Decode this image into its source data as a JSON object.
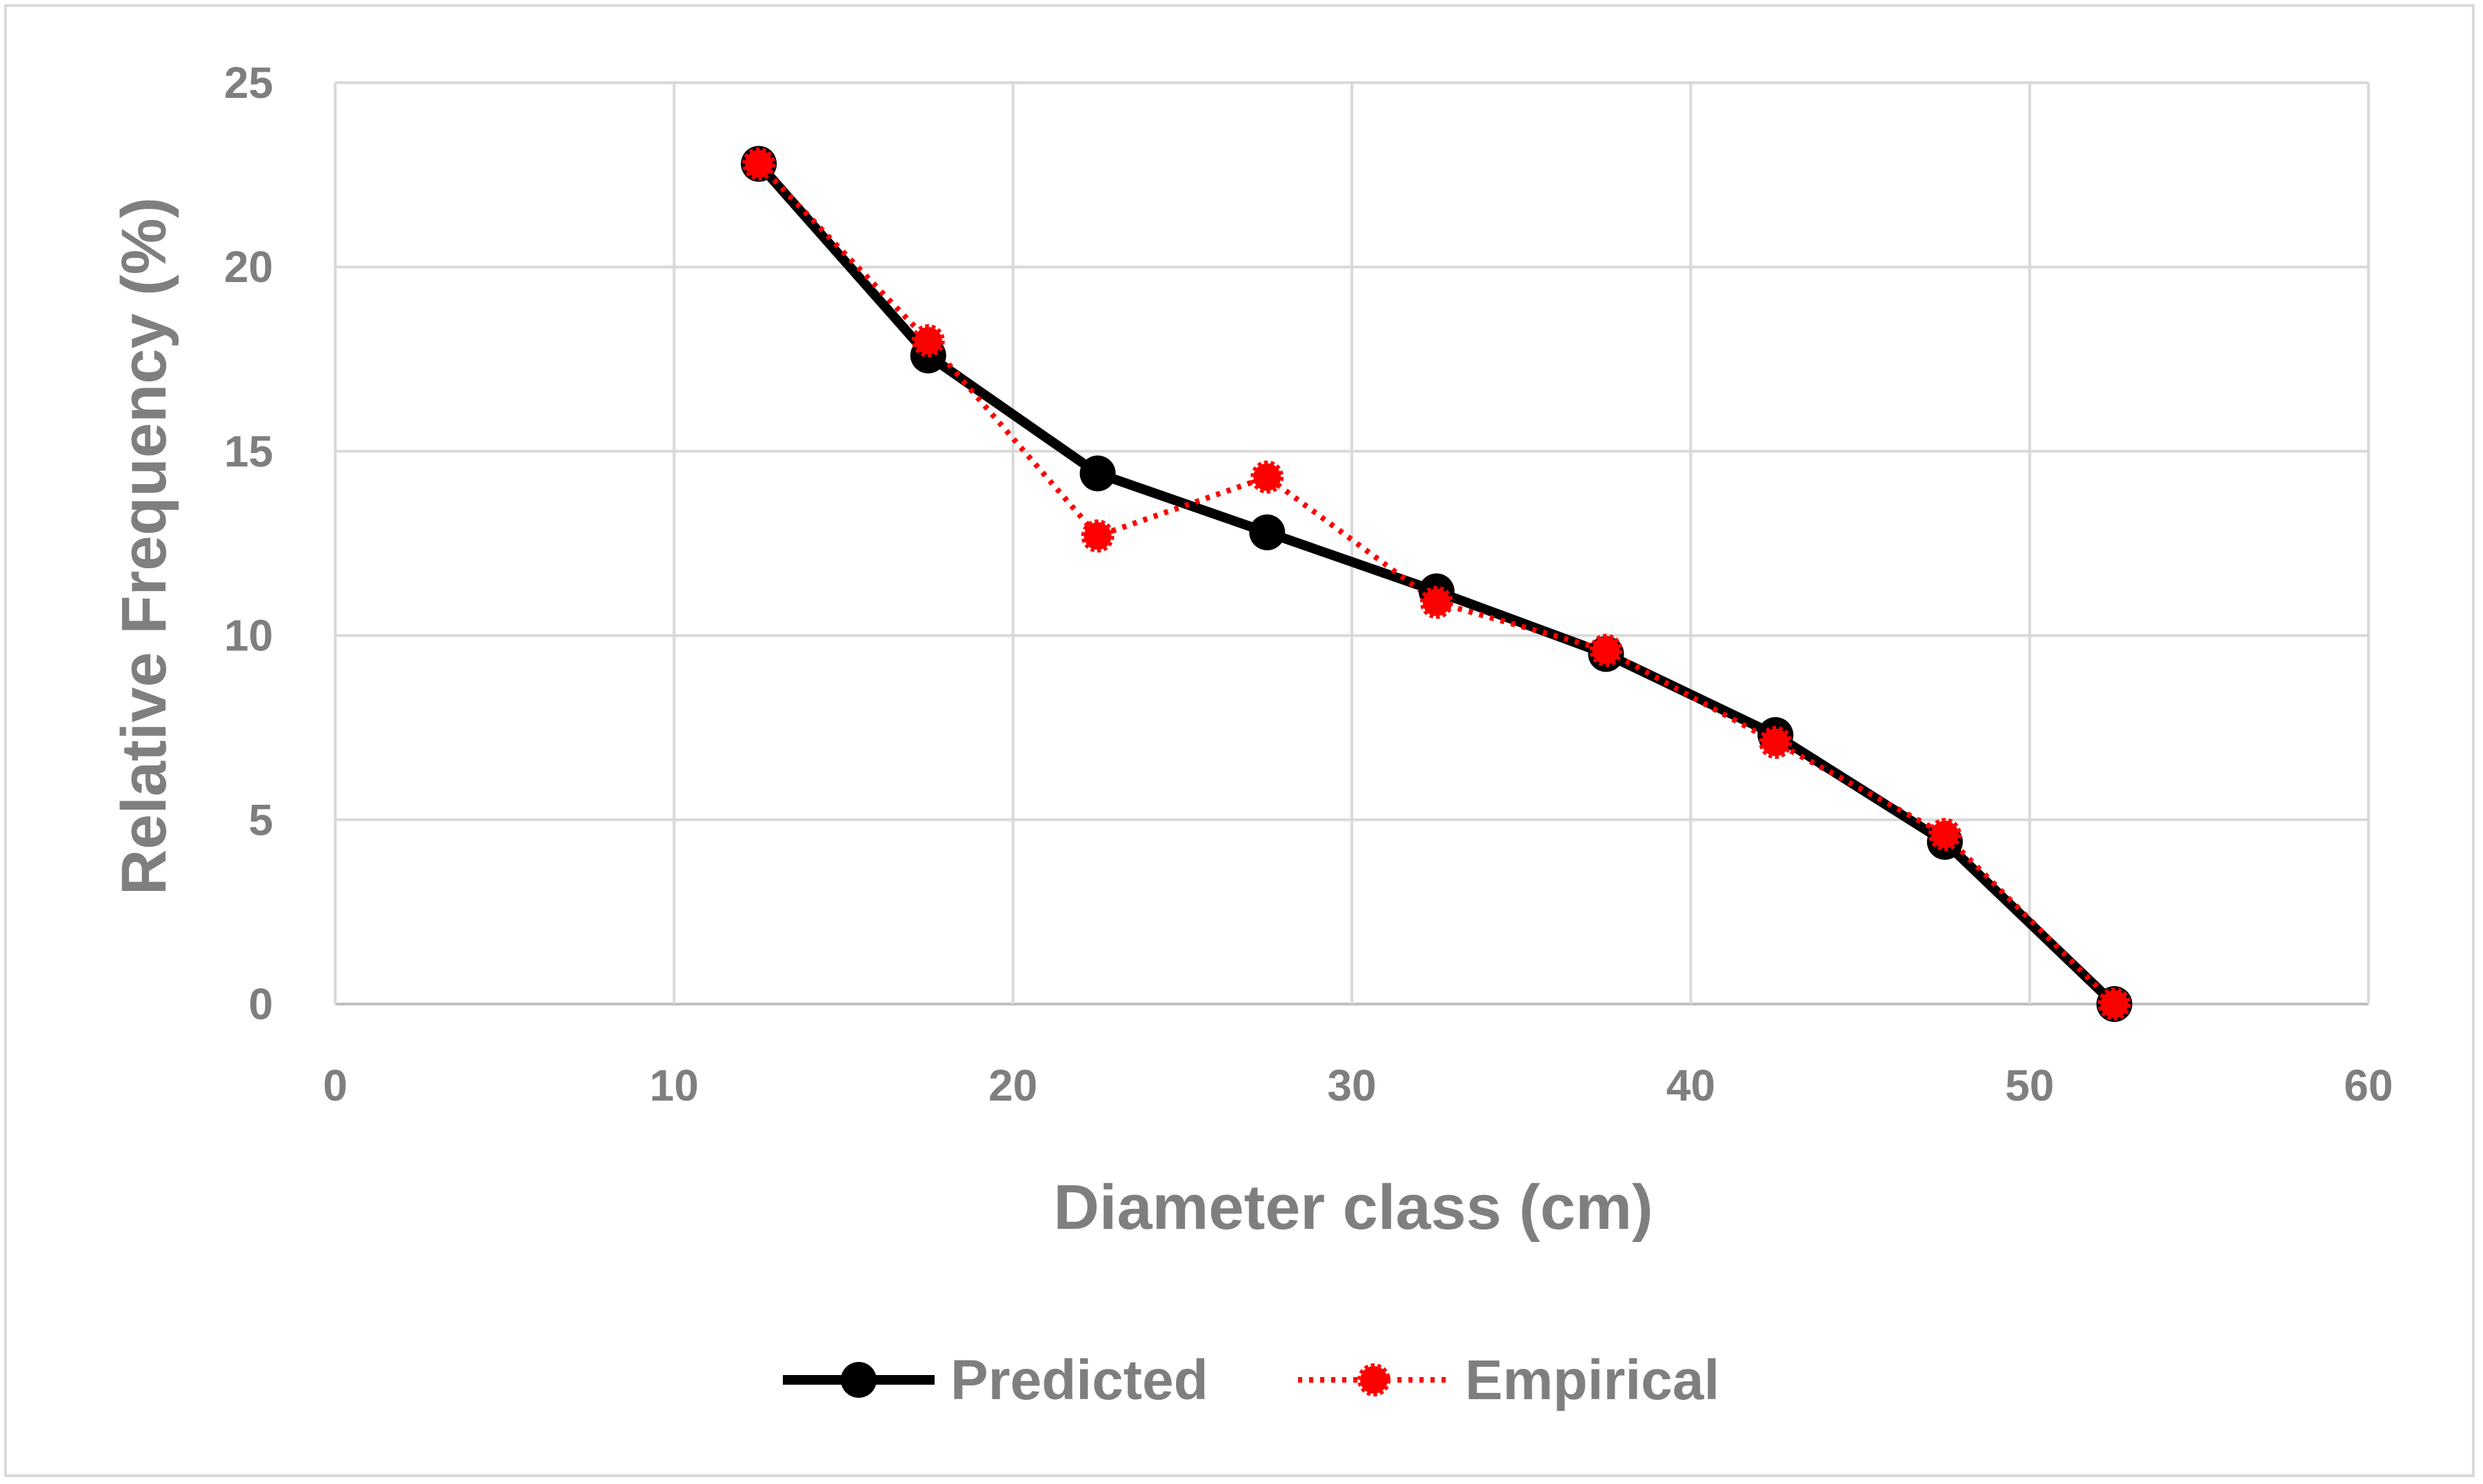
{
  "chart_data": {
    "type": "line",
    "title": "",
    "xlabel": "Diameter class (cm)",
    "ylabel": "Relative Frequency (%)",
    "xlim": [
      0,
      60
    ],
    "ylim": [
      0,
      25
    ],
    "xticks": [
      0,
      10,
      20,
      30,
      40,
      50,
      60
    ],
    "yticks": [
      0,
      5,
      10,
      15,
      20,
      25
    ],
    "grid": true,
    "legend_position": "bottom",
    "series": [
      {
        "name": "Predicted",
        "color": "#000000",
        "line_style": "solid",
        "marker": "circle",
        "x": [
          12.5,
          17.5,
          22.5,
          27.5,
          32.5,
          37.5,
          42.5,
          47.5,
          52.5
        ],
        "y": [
          22.8,
          17.6,
          14.4,
          12.8,
          11.2,
          9.5,
          7.3,
          4.4,
          0.0
        ]
      },
      {
        "name": "Empirical",
        "color": "#ff0000",
        "line_style": "dotted",
        "marker": "circle",
        "x": [
          12.5,
          17.5,
          22.5,
          27.5,
          32.5,
          37.5,
          42.5,
          47.5,
          52.5
        ],
        "y": [
          22.8,
          18.0,
          12.7,
          14.3,
          10.9,
          9.6,
          7.1,
          4.6,
          0.0
        ]
      }
    ]
  }
}
